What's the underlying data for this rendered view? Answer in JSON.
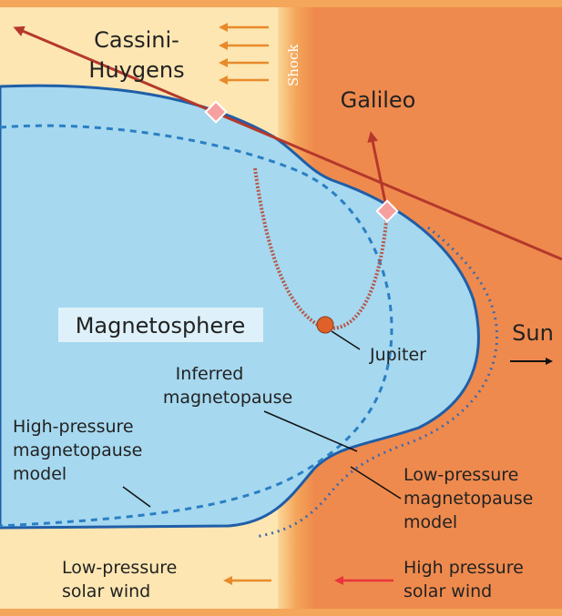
{
  "labels": {
    "cassini": [
      "Cassini-",
      "Huygens"
    ],
    "shock": "Shock",
    "galileo": "Galileo",
    "magnetosphere": "Magnetosphere",
    "jupiter": "Jupiter",
    "sun": "Sun",
    "inferred": [
      "Inferred",
      "magnetopause"
    ],
    "high_model": [
      "High-pressure",
      "magnetopause",
      "model"
    ],
    "low_model": [
      "Low-pressure",
      "magnetopause",
      "model"
    ],
    "low_wind": [
      "Low-pressure",
      "solar wind"
    ],
    "high_wind": [
      "High pressure",
      "solar wind"
    ]
  }
}
